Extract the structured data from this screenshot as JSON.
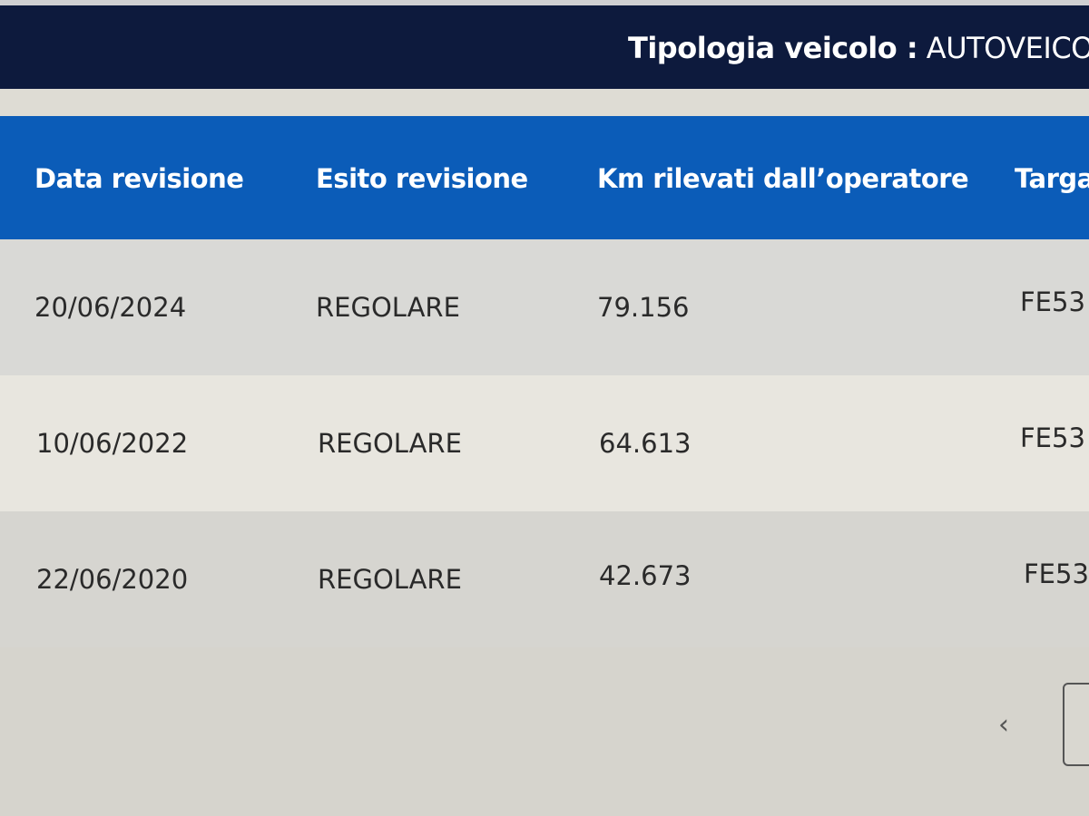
{
  "header": {
    "label": "Tipologia veicolo :",
    "value": "AUTOVEICOLO"
  },
  "table": {
    "columns": [
      "Data revisione",
      "Esito revisione",
      "Km rilevati dall’operatore",
      "Targa"
    ],
    "rows": [
      {
        "data": "20/06/2024",
        "esito": "REGOLARE",
        "km": "79.156",
        "targa": "FE53"
      },
      {
        "data": "10/06/2022",
        "esito": "REGOLARE",
        "km": "64.613",
        "targa": "FE53"
      },
      {
        "data": "22/06/2020",
        "esito": "REGOLARE",
        "km": "42.673",
        "targa": "FE53"
      }
    ]
  },
  "pagination": {
    "prev_icon": "chevron-left-icon",
    "prev_glyph": "‹"
  }
}
